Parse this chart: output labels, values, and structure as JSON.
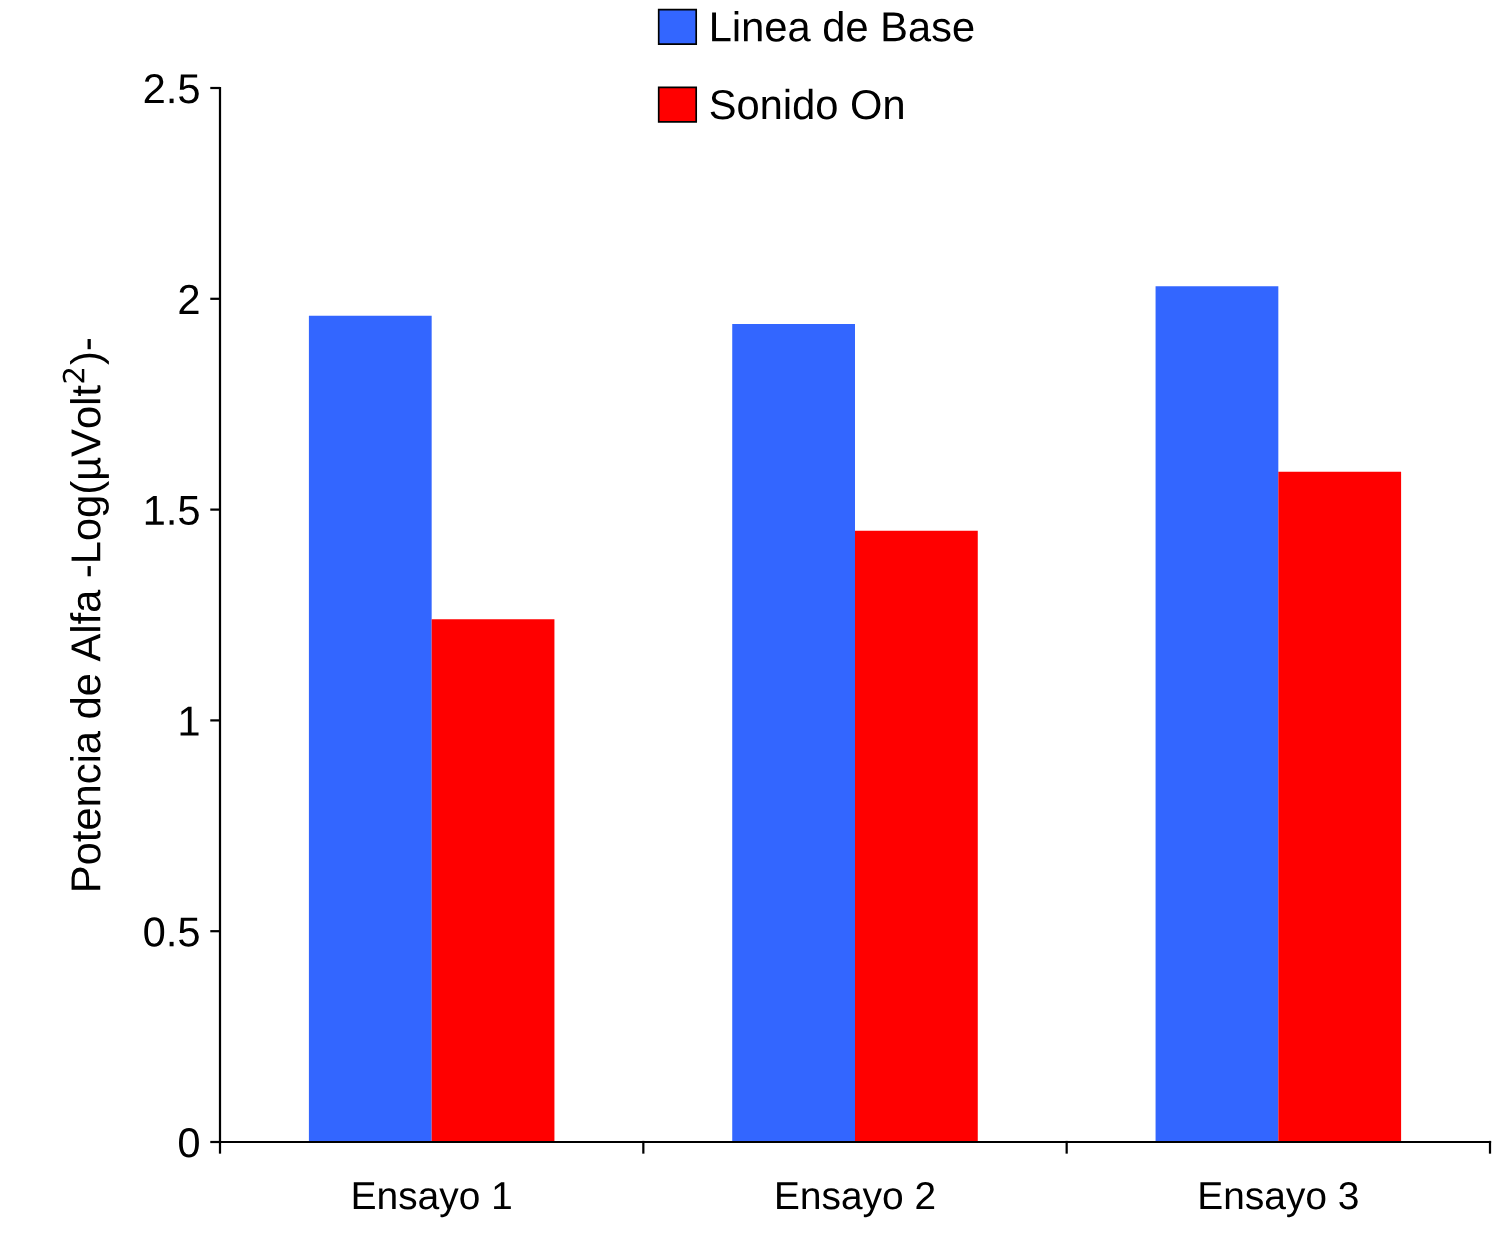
{
  "chart_data": {
    "type": "bar",
    "ylabel": "Potencia de Alfa -Log(µVolt$^{2}$)-",
    "categories": [
      "Ensayo 1",
      "Ensayo 2",
      "Ensayo 3"
    ],
    "series": [
      {
        "name": "Linea de Base",
        "color": "#3366ff",
        "values": [
          1.96,
          1.94,
          2.03
        ]
      },
      {
        "name": "Sonido On",
        "color": "#ff0000",
        "values": [
          1.24,
          1.45,
          1.59
        ]
      }
    ],
    "ylim": [
      0,
      2.5
    ],
    "yticks": [
      0,
      0.5,
      1,
      1.5,
      2,
      2.5
    ],
    "grid": false,
    "legend": "top"
  }
}
